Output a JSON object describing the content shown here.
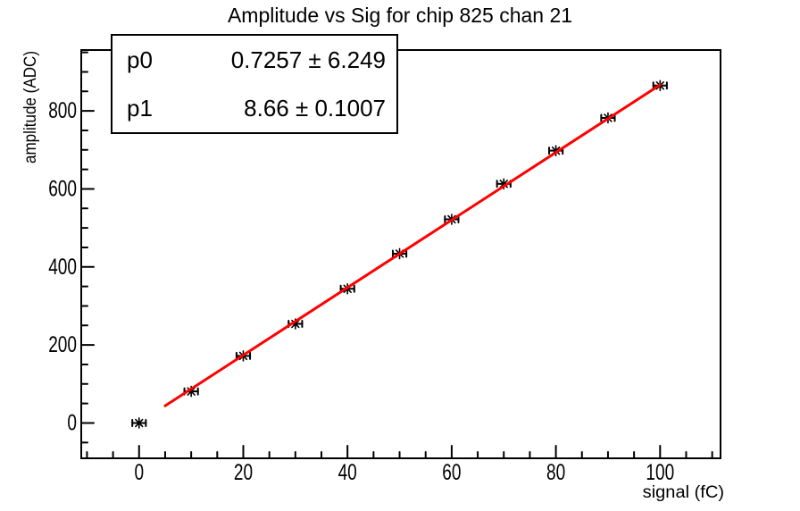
{
  "chart_data": {
    "type": "scatter",
    "title": "Amplitude vs Sig for chip 825 chan 21",
    "xlabel": "signal (fC)",
    "ylabel": "amplitude (ADC)",
    "x": [
      0,
      10,
      20,
      30,
      40,
      50,
      60,
      70,
      80,
      90,
      100
    ],
    "y": [
      0,
      81,
      172,
      254,
      344,
      434,
      522,
      613,
      698,
      782,
      865
    ],
    "xerr": 1.3,
    "x_ticks": [
      0,
      20,
      40,
      60,
      80,
      100
    ],
    "y_ticks": [
      0,
      200,
      400,
      600,
      800
    ],
    "x_minor_step": 5,
    "x_major_step": 20,
    "y_minor_step": 50,
    "y_major_step": 200,
    "xlim": [
      -11.1,
      111.6
    ],
    "ylim": [
      -90.5,
      956
    ],
    "grid": false,
    "background_color": "#ffffff",
    "axis_color": "#000000",
    "marker": "asterisk-with-x-error-bars",
    "marker_color": "#000000",
    "fit": {
      "label": "linear fit",
      "p0": 0.7257,
      "p1": 8.66,
      "range": [
        5,
        100
      ],
      "color": "#ff0000"
    }
  },
  "stats": {
    "rows": [
      {
        "name": "p0",
        "value": "0.7257 ± 6.249"
      },
      {
        "name": "p1",
        "value": "8.66 ± 0.1007"
      }
    ]
  }
}
